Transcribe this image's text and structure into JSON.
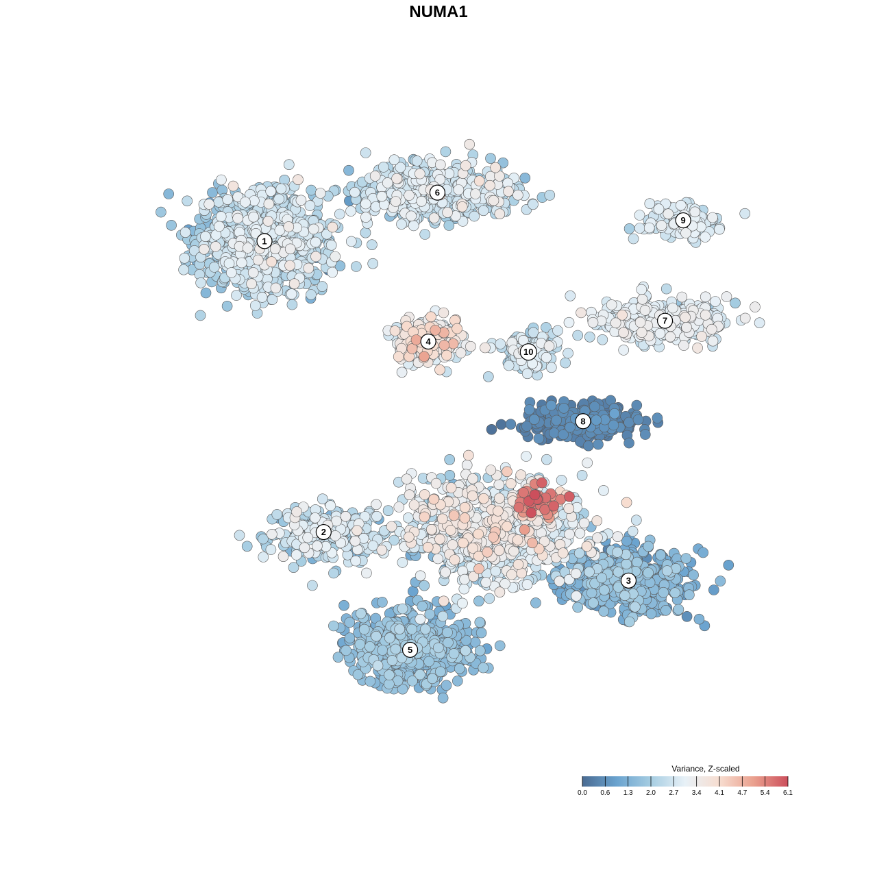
{
  "chart_data": {
    "type": "scatter",
    "title": "NUMA1",
    "color_scale": {
      "title": "Variance, Z-scaled",
      "range": [
        0.0,
        6.1
      ],
      "ticks": [
        "0.0",
        "0.6",
        "1.3",
        "2.0",
        "2.7",
        "3.4",
        "4.1",
        "4.7",
        "5.4",
        "6.1"
      ],
      "colors": [
        "#4a6b92",
        "#6aa3cf",
        "#a6cde2",
        "#e8f1f7",
        "#f7ddd0",
        "#eaa08e",
        "#cc4f5c"
      ]
    },
    "axes": {
      "visible": false
    },
    "grid": false,
    "legend_placement": "bottom-right",
    "clusters": [
      {
        "label": "1",
        "x": -4.2,
        "y": 5.6,
        "sx": 1.3,
        "sy": 1.3,
        "n": 900,
        "mean_value": 2.3,
        "spread": 0.8
      },
      {
        "label": "2",
        "x": -2.9,
        "y": -2.8,
        "sx": 1.2,
        "sy": 0.7,
        "n": 260,
        "mean_value": 2.4,
        "spread": 0.9
      },
      {
        "label": "3",
        "x": 3.8,
        "y": -4.2,
        "sx": 1.2,
        "sy": 0.8,
        "n": 520,
        "mean_value": 1.3,
        "spread": 0.7
      },
      {
        "label": "4",
        "x": -0.6,
        "y": 2.7,
        "sx": 0.6,
        "sy": 0.6,
        "n": 260,
        "mean_value": 3.2,
        "spread": 0.9
      },
      {
        "label": "5",
        "x": -1.0,
        "y": -6.2,
        "sx": 1.2,
        "sy": 0.9,
        "n": 620,
        "mean_value": 1.6,
        "spread": 0.5
      },
      {
        "label": "6",
        "x": -0.4,
        "y": 7.0,
        "sx": 1.6,
        "sy": 0.7,
        "n": 600,
        "mean_value": 2.4,
        "spread": 0.9
      },
      {
        "label": "7",
        "x": 4.6,
        "y": 3.3,
        "sx": 1.4,
        "sy": 0.6,
        "n": 330,
        "mean_value": 2.9,
        "spread": 0.5
      },
      {
        "label": "8",
        "x": 2.8,
        "y": 0.4,
        "sx": 1.1,
        "sy": 0.45,
        "n": 300,
        "mean_value": 0.4,
        "spread": 0.3
      },
      {
        "label": "9",
        "x": 5.0,
        "y": 6.2,
        "sx": 0.8,
        "sy": 0.45,
        "n": 150,
        "mean_value": 2.7,
        "spread": 0.5
      },
      {
        "label": "10",
        "x": 1.6,
        "y": 2.4,
        "sx": 0.6,
        "sy": 0.5,
        "n": 120,
        "mean_value": 2.6,
        "spread": 0.6
      },
      {
        "label": "",
        "x": 0.8,
        "y": -2.8,
        "sx": 1.8,
        "sy": 1.3,
        "n": 900,
        "mean_value": 2.8,
        "spread": 1.0
      },
      {
        "label": "",
        "x": 1.8,
        "y": -1.9,
        "sx": 0.5,
        "sy": 0.4,
        "n": 40,
        "mean_value": 5.5,
        "spread": 0.5
      }
    ],
    "xlim": [
      -7.0,
      7.0
    ],
    "ylim": [
      -9.0,
      9.0
    ]
  }
}
